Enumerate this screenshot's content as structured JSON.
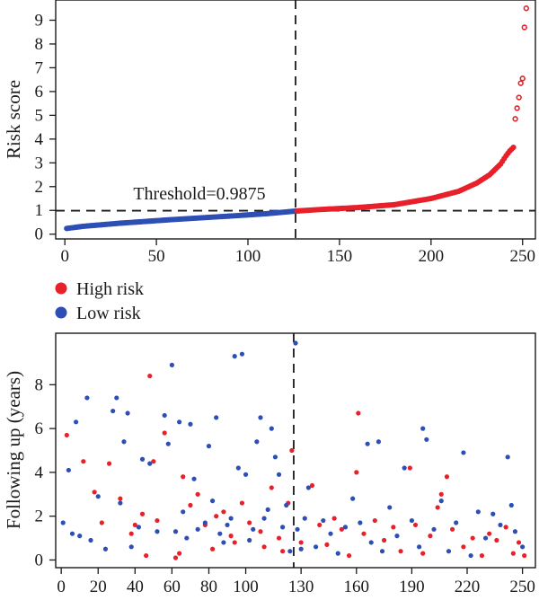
{
  "colors": {
    "high": "#e8202a",
    "low": "#2d4fb5",
    "axis": "#1a1a1a"
  },
  "legend": {
    "high_label": "High risk",
    "low_label": "Low risk"
  },
  "chart_data": [
    {
      "type": "scatter",
      "ylabel": "Risk score",
      "xlabel": "",
      "xlim": [
        -5,
        257
      ],
      "ylim": [
        -0.2,
        9.85
      ],
      "xticks": [
        0,
        50,
        100,
        150,
        200,
        250
      ],
      "yticks": [
        0,
        1,
        2,
        3,
        4,
        5,
        6,
        7,
        8,
        9
      ],
      "cutoff_index": 126,
      "threshold": {
        "value": 0.9875,
        "label": "Threshold=0.9875"
      },
      "curve_points": [
        [
          1,
          0.24
        ],
        [
          10,
          0.33
        ],
        [
          30,
          0.46
        ],
        [
          60,
          0.62
        ],
        [
          90,
          0.76
        ],
        [
          110,
          0.86
        ],
        [
          126,
          0.97
        ],
        [
          140,
          1.04
        ],
        [
          160,
          1.12
        ],
        [
          180,
          1.24
        ],
        [
          200,
          1.5
        ],
        [
          215,
          1.8
        ],
        [
          225,
          2.15
        ],
        [
          232,
          2.5
        ],
        [
          238,
          2.95
        ],
        [
          241,
          3.3
        ],
        [
          243,
          3.5
        ],
        [
          245,
          3.65
        ]
      ],
      "outliers": [
        [
          246,
          4.85
        ],
        [
          247,
          5.3
        ],
        [
          248,
          5.75
        ],
        [
          249,
          6.35
        ],
        [
          250,
          6.55
        ],
        [
          251,
          8.7
        ],
        [
          252,
          9.5
        ]
      ],
      "series_names": [
        "High risk",
        "Low risk"
      ]
    },
    {
      "type": "scatter",
      "ylabel": "Following up (years)",
      "xlabel": "",
      "xlim": [
        -3,
        257
      ],
      "ylim": [
        -0.35,
        10.35
      ],
      "xticks": [
        0,
        20,
        40,
        60,
        80,
        100,
        130,
        160,
        190,
        220,
        250
      ],
      "yticks": [
        0,
        2,
        4,
        6,
        8
      ],
      "cutoff_index": 126,
      "series": [
        {
          "name": "High risk",
          "points": [
            [
              3,
              5.7
            ],
            [
              12,
              4.5
            ],
            [
              18,
              3.1
            ],
            [
              22,
              1.7
            ],
            [
              26,
              4.4
            ],
            [
              32,
              2.8
            ],
            [
              38,
              1.2
            ],
            [
              40,
              1.6
            ],
            [
              44,
              2.1
            ],
            [
              46,
              0.2
            ],
            [
              48,
              8.4
            ],
            [
              50,
              4.5
            ],
            [
              52,
              1.8
            ],
            [
              56,
              5.8
            ],
            [
              62,
              0.1
            ],
            [
              64,
              0.3
            ],
            [
              66,
              3.8
            ],
            [
              70,
              2.5
            ],
            [
              74,
              3.0
            ],
            [
              78,
              1.6
            ],
            [
              82,
              0.5
            ],
            [
              84,
              2.0
            ],
            [
              88,
              2.2
            ],
            [
              92,
              1.1
            ],
            [
              94,
              0.8
            ],
            [
              98,
              2.6
            ],
            [
              102,
              1.7
            ],
            [
              108,
              1.3
            ],
            [
              110,
              0.6
            ],
            [
              114,
              3.3
            ],
            [
              118,
              1.0
            ],
            [
              120,
              0.4
            ],
            [
              123,
              2.6
            ],
            [
              125,
              5.0
            ],
            [
              130,
              0.8
            ],
            [
              136,
              3.4
            ],
            [
              140,
              1.6
            ],
            [
              144,
              0.7
            ],
            [
              148,
              1.9
            ],
            [
              152,
              1.4
            ],
            [
              156,
              0.2
            ],
            [
              160,
              4.0
            ],
            [
              161,
              6.7
            ],
            [
              164,
              1.2
            ],
            [
              170,
              1.8
            ],
            [
              175,
              0.9
            ],
            [
              180,
              1.5
            ],
            [
              184,
              0.4
            ],
            [
              189,
              4.2
            ],
            [
              192,
              1.6
            ],
            [
              196,
              0.3
            ],
            [
              200,
              1.1
            ],
            [
              204,
              2.4
            ],
            [
              206,
              3.0
            ],
            [
              209,
              3.8
            ],
            [
              212,
              1.4
            ],
            [
              218,
              0.6
            ],
            [
              223,
              1.0
            ],
            [
              228,
              0.2
            ],
            [
              232,
              1.2
            ],
            [
              236,
              0.9
            ],
            [
              241,
              1.5
            ],
            [
              245,
              0.3
            ],
            [
              248,
              0.8
            ],
            [
              251,
              0.2
            ]
          ]
        },
        {
          "name": "Low risk",
          "points": [
            [
              1,
              1.7
            ],
            [
              4,
              4.1
            ],
            [
              6,
              1.2
            ],
            [
              8,
              6.3
            ],
            [
              10,
              1.1
            ],
            [
              14,
              7.4
            ],
            [
              16,
              0.9
            ],
            [
              20,
              2.9
            ],
            [
              24,
              0.5
            ],
            [
              28,
              6.8
            ],
            [
              30,
              7.4
            ],
            [
              32,
              2.6
            ],
            [
              34,
              5.4
            ],
            [
              36,
              6.7
            ],
            [
              38,
              0.6
            ],
            [
              42,
              1.5
            ],
            [
              44,
              4.6
            ],
            [
              48,
              4.4
            ],
            [
              52,
              1.3
            ],
            [
              56,
              6.6
            ],
            [
              58,
              5.3
            ],
            [
              60,
              8.9
            ],
            [
              62,
              1.3
            ],
            [
              64,
              6.3
            ],
            [
              66,
              2.2
            ],
            [
              68,
              1.0
            ],
            [
              70,
              6.2
            ],
            [
              72,
              3.7
            ],
            [
              74,
              1.4
            ],
            [
              78,
              1.7
            ],
            [
              80,
              5.2
            ],
            [
              82,
              2.7
            ],
            [
              84,
              6.5
            ],
            [
              86,
              1.2
            ],
            [
              88,
              0.8
            ],
            [
              90,
              1.6
            ],
            [
              92,
              1.9
            ],
            [
              94,
              9.3
            ],
            [
              96,
              4.2
            ],
            [
              98,
              9.4
            ],
            [
              100,
              3.9
            ],
            [
              102,
              0.9
            ],
            [
              104,
              1.4
            ],
            [
              106,
              5.4
            ],
            [
              108,
              6.5
            ],
            [
              110,
              1.9
            ],
            [
              112,
              2.3
            ],
            [
              114,
              6.0
            ],
            [
              116,
              4.7
            ],
            [
              118,
              3.9
            ],
            [
              120,
              1.5
            ],
            [
              122,
              2.5
            ],
            [
              124,
              0.4
            ],
            [
              127,
              9.9
            ],
            [
              128,
              1.4
            ],
            [
              130,
              0.5
            ],
            [
              132,
              1.9
            ],
            [
              134,
              3.3
            ],
            [
              138,
              0.6
            ],
            [
              142,
              1.8
            ],
            [
              146,
              1.2
            ],
            [
              150,
              0.3
            ],
            [
              154,
              1.5
            ],
            [
              158,
              2.8
            ],
            [
              162,
              1.7
            ],
            [
              166,
              5.3
            ],
            [
              168,
              0.8
            ],
            [
              172,
              5.4
            ],
            [
              174,
              0.4
            ],
            [
              178,
              2.4
            ],
            [
              182,
              1.1
            ],
            [
              186,
              4.2
            ],
            [
              190,
              1.8
            ],
            [
              194,
              0.6
            ],
            [
              196,
              6.0
            ],
            [
              198,
              5.5
            ],
            [
              202,
              1.4
            ],
            [
              206,
              2.7
            ],
            [
              210,
              0.4
            ],
            [
              214,
              1.7
            ],
            [
              218,
              4.9
            ],
            [
              222,
              0.2
            ],
            [
              226,
              2.2
            ],
            [
              230,
              1.0
            ],
            [
              234,
              2.1
            ],
            [
              238,
              1.6
            ],
            [
              242,
              4.7
            ],
            [
              244,
              2.5
            ],
            [
              246,
              1.3
            ],
            [
              250,
              0.6
            ]
          ]
        }
      ]
    }
  ]
}
